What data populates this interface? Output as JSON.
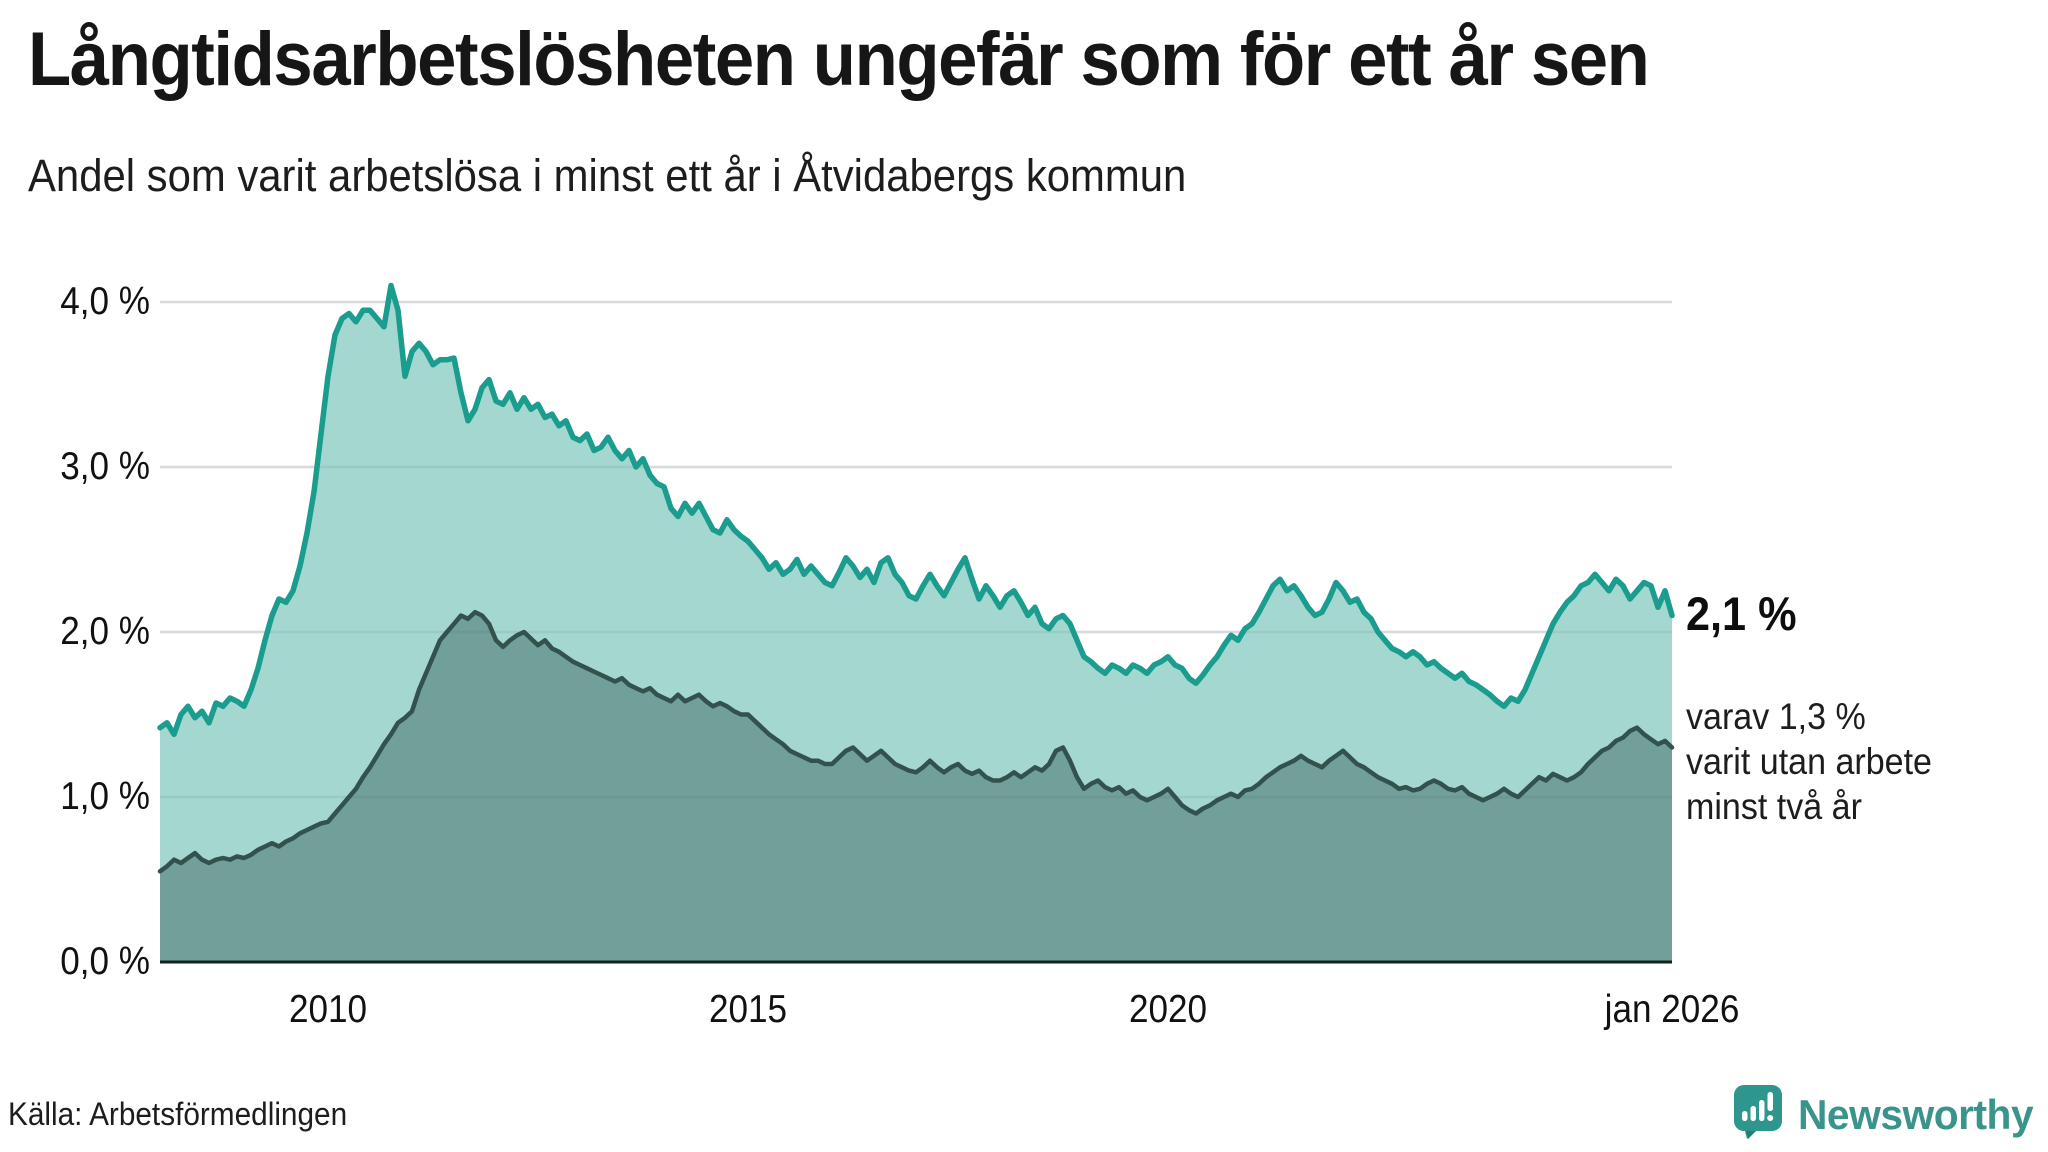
{
  "header": {
    "title": "Långtidsarbetsläsheten ungefär som för ett år sen",
    "title_correct": "Långtidsarbetslösheten ungefär som för ett år sen",
    "subtitle": "Andel som varit arbetslösa i minst ett år i Åtvidabergs kommun"
  },
  "annotations": {
    "end_value": "2,1 %",
    "note_line1": "varav 1,3 %",
    "note_line2": "varit utan arbete",
    "note_line3": "minst två år"
  },
  "footer": {
    "source": "Källa: Arbetsförmedlingen",
    "brand": "Newsworthy"
  },
  "colors": {
    "line_1yr": "#1a9c8e",
    "fill_1yr": "#a4d7d0",
    "line_2yr": "#33524d",
    "fill_2yr": "#719f99",
    "axis": "#122220",
    "grid": "#e8eaec",
    "grid_overlay": "rgba(70,90,95,0.10)",
    "brand_teal": "#2e968c",
    "text": "#1a1a1a"
  },
  "chart_data": {
    "type": "area",
    "title": "Långtidsarbetslösheten ungefär som för ett år sen",
    "subtitle": "Andel som varit arbetslösa i minst ett år i Åtvidabergs kommun",
    "unit": "%",
    "x_start": "2008-01",
    "x_end": "2026-01",
    "x_step_months": 1,
    "ylim": [
      0,
      4.3
    ],
    "grid": "horizontal",
    "y_ticks": [
      {
        "value": 4,
        "label": "4,0 %"
      },
      {
        "value": 3,
        "label": "3,0 %"
      },
      {
        "value": 2,
        "label": "2,0 %"
      },
      {
        "value": 1,
        "label": "1,0 %"
      },
      {
        "value": 0,
        "label": "0,0 %"
      }
    ],
    "x_ticks": [
      {
        "year": 2010,
        "label": "2010"
      },
      {
        "year": 2015,
        "label": "2015"
      },
      {
        "year": 2020,
        "label": "2020"
      },
      {
        "year": 2026,
        "label": "jan 2026"
      }
    ],
    "series": [
      {
        "name": "Arbetslösa minst ett år",
        "end_label": "2,1 %",
        "end_value": 2.1,
        "values": [
          1.42,
          1.45,
          1.38,
          1.5,
          1.55,
          1.48,
          1.52,
          1.45,
          1.57,
          1.55,
          1.6,
          1.58,
          1.55,
          1.65,
          1.78,
          1.95,
          2.1,
          2.2,
          2.18,
          2.25,
          2.4,
          2.6,
          2.85,
          3.2,
          3.55,
          3.8,
          3.9,
          3.93,
          3.88,
          3.95,
          3.95,
          3.9,
          3.85,
          4.1,
          3.95,
          3.55,
          3.7,
          3.75,
          3.7,
          3.62,
          3.65,
          3.65,
          3.66,
          3.45,
          3.28,
          3.35,
          3.48,
          3.53,
          3.4,
          3.38,
          3.45,
          3.35,
          3.42,
          3.35,
          3.38,
          3.3,
          3.32,
          3.25,
          3.28,
          3.18,
          3.16,
          3.2,
          3.1,
          3.12,
          3.18,
          3.1,
          3.05,
          3.1,
          3.0,
          3.05,
          2.95,
          2.9,
          2.88,
          2.75,
          2.7,
          2.78,
          2.72,
          2.78,
          2.7,
          2.62,
          2.6,
          2.68,
          2.62,
          2.58,
          2.55,
          2.5,
          2.45,
          2.38,
          2.42,
          2.35,
          2.38,
          2.44,
          2.35,
          2.4,
          2.35,
          2.3,
          2.28,
          2.36,
          2.45,
          2.4,
          2.33,
          2.38,
          2.3,
          2.42,
          2.45,
          2.35,
          2.3,
          2.22,
          2.2,
          2.28,
          2.35,
          2.28,
          2.22,
          2.3,
          2.38,
          2.45,
          2.32,
          2.2,
          2.28,
          2.22,
          2.15,
          2.22,
          2.25,
          2.18,
          2.1,
          2.15,
          2.05,
          2.02,
          2.08,
          2.1,
          2.05,
          1.95,
          1.85,
          1.82,
          1.78,
          1.75,
          1.8,
          1.78,
          1.75,
          1.8,
          1.78,
          1.75,
          1.8,
          1.82,
          1.85,
          1.8,
          1.78,
          1.72,
          1.69,
          1.74,
          1.8,
          1.85,
          1.92,
          1.98,
          1.95,
          2.02,
          2.05,
          2.12,
          2.2,
          2.28,
          2.32,
          2.25,
          2.28,
          2.22,
          2.15,
          2.1,
          2.12,
          2.2,
          2.3,
          2.25,
          2.18,
          2.2,
          2.12,
          2.08,
          2.0,
          1.95,
          1.9,
          1.88,
          1.85,
          1.88,
          1.85,
          1.8,
          1.82,
          1.78,
          1.75,
          1.72,
          1.75,
          1.7,
          1.68,
          1.65,
          1.62,
          1.58,
          1.55,
          1.6,
          1.58,
          1.65,
          1.75,
          1.85,
          1.95,
          2.05,
          2.12,
          2.18,
          2.22,
          2.28,
          2.3,
          2.35,
          2.3,
          2.25,
          2.32,
          2.28,
          2.2,
          2.25,
          2.3,
          2.28,
          2.15,
          2.25,
          2.1
        ]
      },
      {
        "name": "varav utan arbete minst två år",
        "end_label": "varav 1,3 % varit utan arbete minst två år",
        "end_value": 1.3,
        "values": [
          0.55,
          0.58,
          0.62,
          0.6,
          0.63,
          0.66,
          0.62,
          0.6,
          0.62,
          0.63,
          0.62,
          0.64,
          0.63,
          0.65,
          0.68,
          0.7,
          0.72,
          0.7,
          0.73,
          0.75,
          0.78,
          0.8,
          0.82,
          0.84,
          0.85,
          0.9,
          0.95,
          1.0,
          1.05,
          1.12,
          1.18,
          1.25,
          1.32,
          1.38,
          1.45,
          1.48,
          1.52,
          1.65,
          1.75,
          1.85,
          1.95,
          2.0,
          2.05,
          2.1,
          2.08,
          2.12,
          2.1,
          2.05,
          1.95,
          1.91,
          1.95,
          1.98,
          2.0,
          1.96,
          1.92,
          1.95,
          1.9,
          1.88,
          1.85,
          1.82,
          1.8,
          1.78,
          1.76,
          1.74,
          1.72,
          1.7,
          1.72,
          1.68,
          1.66,
          1.64,
          1.66,
          1.62,
          1.6,
          1.58,
          1.62,
          1.58,
          1.6,
          1.62,
          1.58,
          1.55,
          1.57,
          1.55,
          1.52,
          1.5,
          1.5,
          1.46,
          1.42,
          1.38,
          1.35,
          1.32,
          1.28,
          1.26,
          1.24,
          1.22,
          1.22,
          1.2,
          1.2,
          1.24,
          1.28,
          1.3,
          1.26,
          1.22,
          1.25,
          1.28,
          1.24,
          1.2,
          1.18,
          1.16,
          1.15,
          1.18,
          1.22,
          1.18,
          1.15,
          1.18,
          1.2,
          1.16,
          1.14,
          1.16,
          1.12,
          1.1,
          1.1,
          1.12,
          1.15,
          1.12,
          1.15,
          1.18,
          1.16,
          1.2,
          1.28,
          1.3,
          1.22,
          1.12,
          1.05,
          1.08,
          1.1,
          1.06,
          1.04,
          1.06,
          1.02,
          1.04,
          1.0,
          0.98,
          1.0,
          1.02,
          1.05,
          1.0,
          0.95,
          0.92,
          0.9,
          0.93,
          0.95,
          0.98,
          1.0,
          1.02,
          1.0,
          1.04,
          1.05,
          1.08,
          1.12,
          1.15,
          1.18,
          1.2,
          1.22,
          1.25,
          1.22,
          1.2,
          1.18,
          1.22,
          1.25,
          1.28,
          1.24,
          1.2,
          1.18,
          1.15,
          1.12,
          1.1,
          1.08,
          1.05,
          1.06,
          1.04,
          1.05,
          1.08,
          1.1,
          1.08,
          1.05,
          1.04,
          1.06,
          1.02,
          1.0,
          0.98,
          1.0,
          1.02,
          1.05,
          1.02,
          1.0,
          1.04,
          1.08,
          1.12,
          1.1,
          1.14,
          1.12,
          1.1,
          1.12,
          1.15,
          1.2,
          1.24,
          1.28,
          1.3,
          1.34,
          1.36,
          1.4,
          1.42,
          1.38,
          1.35,
          1.32,
          1.34,
          1.3
        ]
      }
    ]
  }
}
